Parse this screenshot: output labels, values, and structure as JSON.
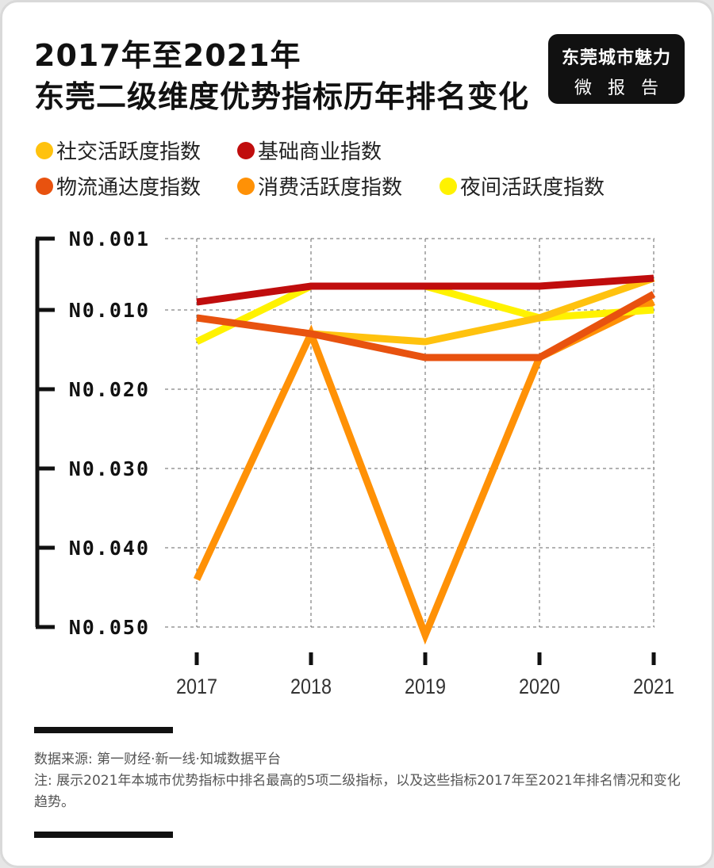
{
  "title": {
    "line1": "2017年至2021年",
    "line2": "东莞二级维度优势指标历年排名变化"
  },
  "brand": {
    "line1": "东莞城市魅力",
    "line2": "微报告"
  },
  "colors": {
    "social": "#ffc20e",
    "commerce": "#c00d0d",
    "logistics": "#e8520f",
    "consumption": "#ff9106",
    "night": "#fff200"
  },
  "chart_data": {
    "type": "line",
    "x": [
      "2017",
      "2018",
      "2019",
      "2020",
      "2021"
    ],
    "y_ticks": [
      "N0.001",
      "N0.010",
      "N0.020",
      "N0.030",
      "N0.040",
      "N0.050"
    ],
    "y_tick_values": [
      1,
      10,
      20,
      30,
      40,
      50
    ],
    "ylim": [
      1,
      50
    ],
    "y_inverted": true,
    "grid": true,
    "legend_position": "top",
    "series": [
      {
        "key": "social",
        "name": "社交活跃度指数",
        "color": "#ffc20e",
        "values": [
          null,
          13,
          14,
          11,
          6
        ]
      },
      {
        "key": "commerce",
        "name": "基础商业指数",
        "color": "#c00d0d",
        "values": [
          9,
          7,
          7,
          7,
          6
        ]
      },
      {
        "key": "logistics",
        "name": "物流通达度指数",
        "color": "#e8520f",
        "values": [
          11,
          13,
          16,
          16,
          8
        ]
      },
      {
        "key": "consumption",
        "name": "消费活跃度指数",
        "color": "#ff9106",
        "values": [
          44,
          13,
          51,
          16,
          9
        ]
      },
      {
        "key": "night",
        "name": "夜间活跃度指数",
        "color": "#fff200",
        "values": [
          14,
          7,
          7,
          11,
          10
        ]
      }
    ],
    "draw_order": [
      "consumption",
      "night",
      "social",
      "logistics",
      "commerce"
    ]
  },
  "footer": {
    "source": "数据来源: 第一财经·新一线·知城数据平台",
    "note": "注: 展示2021年本城市优势指标中排名最高的5项二级指标，以及这些指标2017年至2021年排名情况和变化趋势。"
  }
}
